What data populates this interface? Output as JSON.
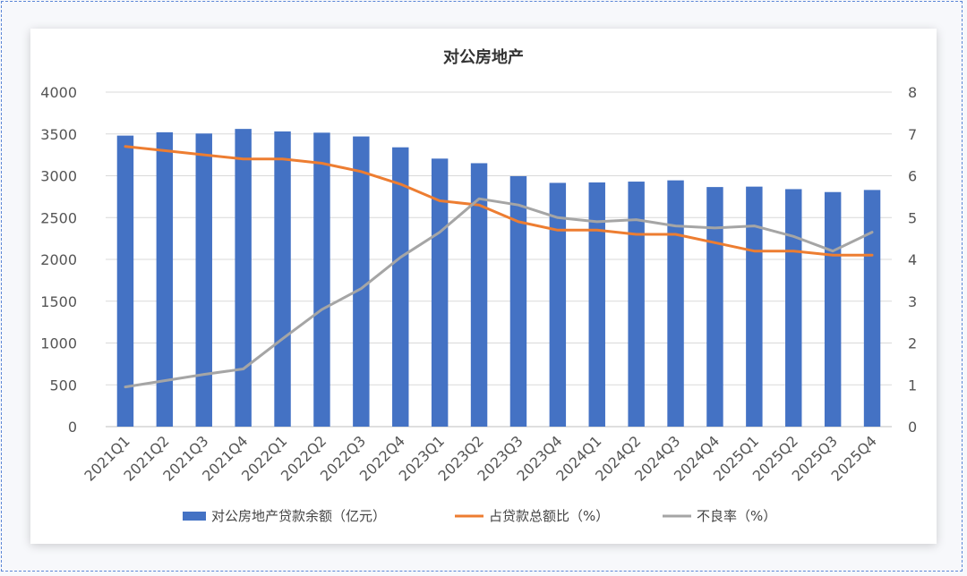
{
  "chart_data": {
    "type": "bar",
    "title": "对公房地产",
    "categories": [
      "2021Q1",
      "2021Q2",
      "2021Q3",
      "2021Q4",
      "2022Q1",
      "2022Q2",
      "2022Q3",
      "2022Q4",
      "2023Q1",
      "2023Q2",
      "2023Q3",
      "2023Q4",
      "2024Q1",
      "2024Q2",
      "2024Q3",
      "2024Q4",
      "2025Q1",
      "2025Q2",
      "2025Q3",
      "2025Q4"
    ],
    "y_left": {
      "ylim": [
        0,
        4000
      ],
      "ticks": [
        "0",
        "500",
        "1000",
        "1500",
        "2000",
        "2500",
        "3000",
        "3500",
        "4000"
      ]
    },
    "y_right": {
      "ylim": [
        0,
        8
      ],
      "ticks": [
        "0",
        "1",
        "2",
        "3",
        "4",
        "5",
        "6",
        "7",
        "8"
      ]
    },
    "grid": true,
    "legend_position": "bottom",
    "series": [
      {
        "name": "对公房地产贷款余额（亿元）",
        "type": "bar",
        "axis": "left",
        "color": "#4472C4",
        "values": [
          3480,
          3520,
          3505,
          3560,
          3530,
          3515,
          3470,
          3340,
          3205,
          3150,
          2995,
          2915,
          2920,
          2930,
          2945,
          2865,
          2870,
          2840,
          2805,
          2830
        ]
      },
      {
        "name": "占贷款总额比（%）",
        "type": "line",
        "axis": "right",
        "color": "#ED7D31",
        "values": [
          6.7,
          6.6,
          6.5,
          6.4,
          6.4,
          6.3,
          6.1,
          5.8,
          5.4,
          5.3,
          4.9,
          4.7,
          4.7,
          4.6,
          4.6,
          4.4,
          4.2,
          4.2,
          4.1,
          4.1
        ]
      },
      {
        "name": "不良率（%）",
        "type": "line",
        "axis": "right",
        "color": "#A5A5A5",
        "values": [
          0.95,
          1.1,
          1.25,
          1.38,
          2.1,
          2.8,
          3.3,
          4.05,
          4.65,
          5.45,
          5.3,
          5.0,
          4.9,
          4.95,
          4.8,
          4.75,
          4.8,
          4.55,
          4.2,
          4.65
        ]
      }
    ]
  }
}
